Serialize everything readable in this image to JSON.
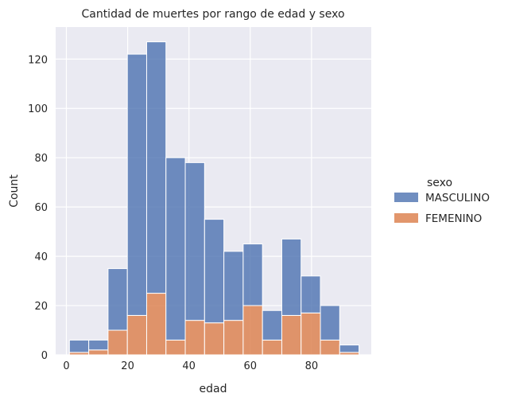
{
  "chart_data": {
    "type": "bar",
    "subtype": "stacked-histogram",
    "title": "Cantidad de muertes por rango de edad y sexo",
    "xlabel": "edad",
    "ylabel": "Count",
    "xlim": [
      -3.5,
      99.5
    ],
    "ylim": [
      0,
      133
    ],
    "xticks": [
      0,
      20,
      40,
      60,
      80
    ],
    "yticks": [
      0,
      20,
      40,
      60,
      80,
      100,
      120
    ],
    "grid": true,
    "bin_edges": [
      1,
      7.3,
      13.6,
      19.9,
      26.2,
      32.5,
      38.8,
      45.1,
      51.4,
      57.7,
      64.0,
      70.3,
      76.6,
      82.9,
      89.2,
      95.5
    ],
    "series": [
      {
        "name": "MASCULINO",
        "color": "#4c72b0",
        "values": [
          5,
          4,
          25,
          106,
          102,
          74,
          64,
          42,
          28,
          25,
          12,
          31,
          15,
          14,
          3
        ]
      },
      {
        "name": "FEMENINO",
        "color": "#dd8452",
        "values": [
          1,
          2,
          10,
          16,
          25,
          6,
          14,
          13,
          14,
          20,
          6,
          16,
          17,
          6,
          1
        ]
      }
    ],
    "legend": {
      "title": "sexo",
      "position": "right"
    }
  },
  "colors": {
    "plot_bg": "#eaeaf2",
    "grid": "#ffffff",
    "text": "#262626"
  }
}
